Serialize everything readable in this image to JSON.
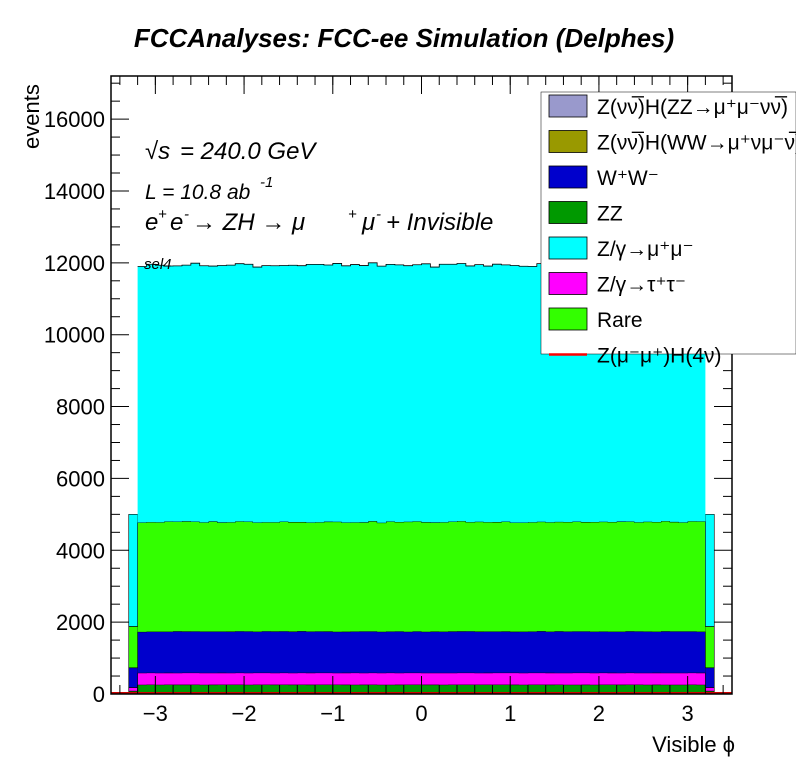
{
  "chart_data": {
    "type": "bar",
    "style": "stacked-histogram",
    "title": "FCCAnalyses: FCC-ee Simulation (Delphes)",
    "xlabel": "Visible ϕ",
    "ylabel": "events",
    "xlim": [
      -3.5,
      3.5
    ],
    "ylim": [
      0,
      17200
    ],
    "x_ticks": [
      -3,
      -2,
      -1,
      0,
      1,
      2,
      3
    ],
    "x_tick_labels": [
      "−3",
      "−2",
      "−1",
      "0",
      "1",
      "2",
      "3"
    ],
    "y_ticks": [
      0,
      2000,
      4000,
      6000,
      8000,
      10000,
      12000,
      14000,
      16000
    ],
    "y_tick_labels": [
      "0",
      "2000",
      "4000",
      "6000",
      "8000",
      "10000",
      "12000",
      "14000",
      "16000"
    ],
    "annotations": {
      "energy_sqrt": "√s",
      "energy_value": " = 240.0 GeV",
      "lumi_prefix": "L = 10.8 ab",
      "lumi_exp": "-1",
      "process": {
        "e": "e",
        "plus": "+",
        "minus": "-",
        "arrow1": " → ZH → μ",
        "mu_plus": "+",
        "mu": "μ",
        "mu_minus": "-",
        "tail": " + Invisible"
      },
      "selection": "sel4"
    },
    "bins": {
      "count": 64,
      "range": [
        -3.2,
        3.2
      ],
      "edge_bins": {
        "low": [
          -3.3,
          -3.2
        ],
        "high": [
          3.2,
          3.3
        ]
      }
    },
    "series": [
      {
        "name": "Z(νν̅)H(ZZ→μ⁺μ⁻νν̅)",
        "color": "#9999cc",
        "level": 0
      },
      {
        "name": "Z(νν̅)H(WW→μ⁺νμ⁻ν̅)",
        "color": "#999900",
        "level": 0
      },
      {
        "name": "W⁺W⁻",
        "color": "#0000cc",
        "level": 1150
      },
      {
        "name": "ZZ",
        "color": "#009900",
        "level": 260
      },
      {
        "name": "Z/γ→μ⁺μ⁻",
        "color": "#00ffff",
        "level": 7150
      },
      {
        "name": "Z/γ→τ⁺τ⁻",
        "color": "#ff00ff",
        "level": 330
      },
      {
        "name": "Rare",
        "color": "#33ff00",
        "level": 3050
      },
      {
        "name": "Z(μ⁻μ⁺)H(4ν)",
        "color": "#ff0000",
        "level": 0,
        "style": "line"
      }
    ],
    "stack_order_bottom_to_top": [
      "ZZ",
      "Z/γ→τ⁺τ⁻",
      "W⁺W⁻",
      "Rare",
      "Z/γ→μ⁺μ⁻"
    ],
    "edge_bin_levels": {
      "ZZ": 80,
      "Z/γ→τ⁺τ⁻": 100,
      "W⁺W⁻": 550,
      "Rare": 1150,
      "Z/γ→μ⁺μ⁻": 3120
    },
    "approx_totals": {
      "inner_bins_top": 12000,
      "edge_bins_top": 5000
    },
    "legend_position": "top-right",
    "grid": false
  }
}
